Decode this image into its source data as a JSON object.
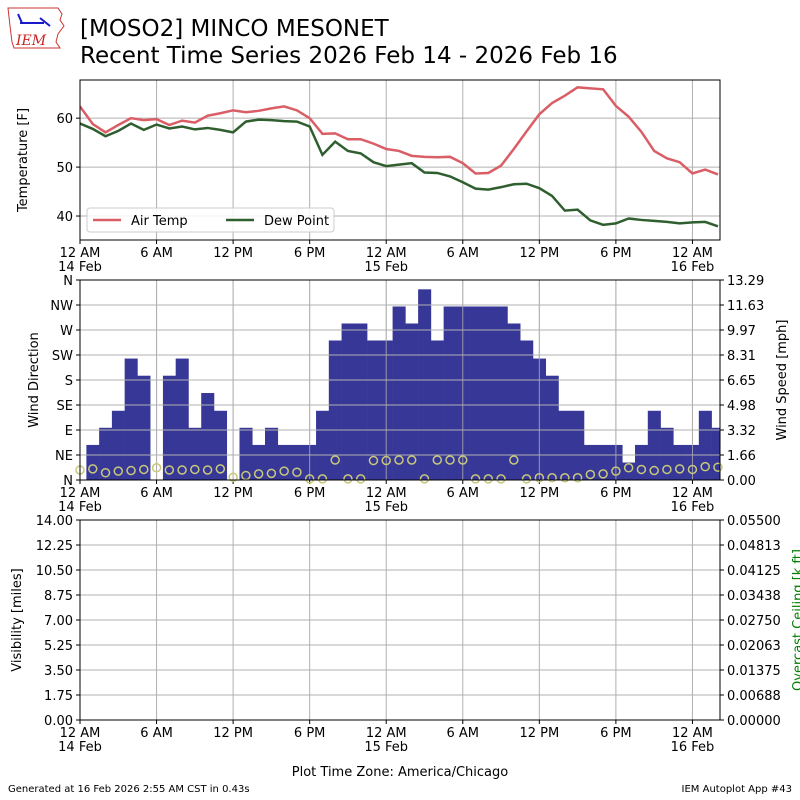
{
  "header": {
    "logo_text": "IEM",
    "title_line1": "[MOSO2] MINCO MESONET",
    "title_line2": "Recent Time Series 2026 Feb 14 - 2026 Feb 16"
  },
  "footer": {
    "generated": "Generated at 16 Feb 2026 2:55 AM CST in 0.43s",
    "app": "IEM Autoplot App #43"
  },
  "colors": {
    "air_temp": "#da5e66",
    "dew_point": "#2f5f2f",
    "wind_speed": "#373797",
    "wind_dir": "#c8c87a",
    "ceiling_label": "#008000"
  },
  "chart_data": [
    {
      "type": "line",
      "xlabel_ticks": [
        "12 AM",
        "6 AM",
        "12 PM",
        "6 PM",
        "12 AM",
        "6 AM",
        "12 PM",
        "6 PM",
        "12 AM"
      ],
      "xtick_hours": [
        0,
        6,
        12,
        18,
        24,
        30,
        36,
        42,
        48
      ],
      "date_labels": [
        "14 Feb",
        "15 Feb",
        "16 Feb"
      ],
      "x_unit": "hours since 12 AM 14 Feb",
      "xlim": [
        0,
        50.16
      ],
      "ylabel": "Temperature [F]",
      "ylim": [
        35.1,
        67.8
      ],
      "yticks": [
        40,
        50,
        60
      ],
      "grid": true,
      "legend_position": "lower-left",
      "series": [
        {
          "name": "Air Temp",
          "values": [
            62.4,
            58.8,
            57.1,
            58.6,
            60.0,
            59.6,
            59.8,
            58.6,
            59.5,
            59.1,
            60.5,
            61.0,
            61.6,
            61.2,
            61.5,
            62.0,
            62.4,
            61.6,
            60.0,
            56.8,
            56.9,
            55.7,
            55.7,
            54.8,
            53.7,
            53.3,
            52.3,
            52.1,
            52.0,
            52.1,
            50.8,
            48.7,
            48.8,
            50.3,
            53.7,
            57.3,
            60.8,
            63.1,
            64.6,
            66.3,
            66.1,
            65.9,
            62.5,
            60.3,
            57.2,
            53.3,
            51.8,
            51.0,
            48.7,
            49.5,
            48.5
          ]
        },
        {
          "name": "Dew Point",
          "values": [
            58.9,
            57.8,
            56.3,
            57.4,
            58.9,
            57.6,
            58.7,
            57.9,
            58.3,
            57.7,
            58.0,
            57.6,
            57.1,
            59.3,
            59.7,
            59.6,
            59.4,
            59.3,
            58.3,
            52.5,
            55.2,
            53.3,
            52.8,
            51.0,
            50.2,
            50.5,
            50.8,
            48.9,
            48.8,
            48.1,
            46.9,
            45.6,
            45.4,
            45.9,
            46.5,
            46.6,
            45.7,
            44.1,
            41.1,
            41.3,
            39.1,
            38.2,
            38.5,
            39.5,
            39.2,
            39.0,
            38.8,
            38.5,
            38.7,
            38.8,
            37.9
          ]
        }
      ]
    },
    {
      "type": "bar",
      "ylabel_left": "Wind Direction",
      "ylabel_right": "Wind Speed [mph]",
      "dir_ticks": [
        "N",
        "NE",
        "E",
        "SE",
        "S",
        "SW",
        "W",
        "NW",
        "N"
      ],
      "dir_ylim": [
        0,
        360
      ],
      "speed_ticks": [
        "0.00",
        "1.66",
        "3.32",
        "4.98",
        "6.65",
        "8.31",
        "9.97",
        "11.63",
        "13.29"
      ],
      "speed_ylim": [
        0,
        13.29
      ],
      "grid": true,
      "wind_speed_start_hour": 0.5,
      "wind_speed_mph": [
        2.33,
        3.47,
        4.6,
        8.07,
        6.93,
        0,
        6.93,
        8.07,
        3.47,
        5.78,
        4.6,
        0,
        3.47,
        2.33,
        3.47,
        2.33,
        2.33,
        2.33,
        4.6,
        9.27,
        10.4,
        10.4,
        9.27,
        9.27,
        11.53,
        10.4,
        12.67,
        9.27,
        11.53,
        11.53,
        11.53,
        11.53,
        11.53,
        10.4,
        9.27,
        8.07,
        6.93,
        4.6,
        4.6,
        2.33,
        2.33,
        2.33,
        1.16,
        2.33,
        4.6,
        3.47,
        2.33,
        2.33,
        4.6,
        3.47
      ],
      "wind_dir_deg": [
        18,
        20,
        13,
        16,
        17,
        19,
        22,
        18,
        18,
        19,
        18,
        20,
        5,
        8,
        11,
        12,
        16,
        14,
        2,
        2,
        36,
        2,
        2,
        35,
        35,
        36,
        36,
        2,
        36,
        36,
        36,
        2,
        2,
        2,
        36,
        2,
        4,
        4,
        4,
        4,
        10,
        11,
        16,
        22,
        19,
        17,
        19,
        20,
        19,
        24,
        23
      ]
    },
    {
      "type": "line",
      "ylabel_left": "Visibility [miles]",
      "ylabel_right": "Overcast Ceiling [k ft]",
      "xlabel": "Plot Time Zone: America/Chicago",
      "vis_ticks": [
        "0.00",
        "1.75",
        "3.50",
        "5.25",
        "7.00",
        "8.75",
        "10.50",
        "12.25",
        "14.00"
      ],
      "vis_ylim": [
        0,
        14
      ],
      "ceiling_ticks": [
        "0.00000",
        "0.00688",
        "0.01375",
        "0.02063",
        "0.02750",
        "0.03438",
        "0.04125",
        "0.04813",
        "0.05500"
      ],
      "ceiling_ylim": [
        0,
        0.055
      ],
      "grid": true,
      "series": []
    }
  ]
}
